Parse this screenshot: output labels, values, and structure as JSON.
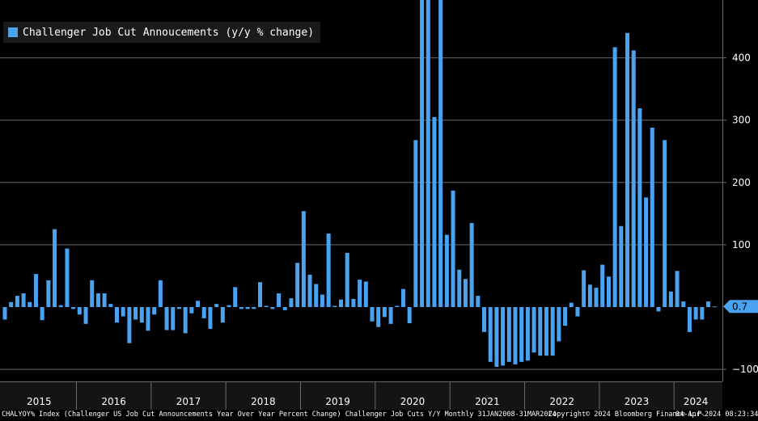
{
  "chart_data": {
    "type": "bar",
    "title": "",
    "xlabel": "",
    "ylabel": "",
    "ylim": [
      -108,
      495
    ],
    "yticks": [
      -100,
      100,
      200,
      300,
      400
    ],
    "last_value_label": "0.7",
    "bar_color": "#4aa3f0",
    "grid": true,
    "legend": {
      "position": "top-left",
      "entries": [
        "Challenger Job Cut Annoucements (y/y % change)"
      ]
    },
    "x_tick_labels": [
      "2015",
      "2016",
      "2017",
      "2018",
      "2019",
      "2020",
      "2021",
      "2022",
      "2023",
      "2024"
    ],
    "start": "2015-01",
    "series": [
      {
        "name": "Challenger Job Cut Annoucements (y/y % change)",
        "values": [
          -20,
          8,
          18,
          22,
          8,
          53,
          -21,
          43,
          125,
          3,
          94,
          -3,
          -12,
          -27,
          43,
          22,
          22,
          5,
          -25,
          -15,
          -58,
          -20,
          -25,
          -38,
          -12,
          43,
          -37,
          -37,
          -3,
          -42,
          -10,
          10,
          -18,
          -35,
          5,
          -25,
          3,
          32,
          -3,
          -3,
          -3,
          40,
          2,
          -3,
          22,
          -5,
          14,
          71,
          154,
          52,
          37,
          20,
          118,
          2,
          12,
          87,
          13,
          44,
          41,
          -23,
          -32,
          -16,
          -27,
          2,
          29,
          -26,
          268,
          495,
          495,
          305,
          495,
          116,
          187,
          60,
          45,
          135,
          18,
          -40,
          -88,
          -96,
          -94,
          -88,
          -92,
          -88,
          -86,
          -73,
          -78,
          -78,
          -78,
          -55,
          -30,
          7,
          -15,
          59,
          36,
          31,
          68,
          49,
          417,
          130,
          440,
          412,
          319,
          176,
          288,
          -7,
          268,
          25,
          58,
          9,
          -40,
          -20,
          -20,
          9,
          1
        ]
      }
    ]
  },
  "legend_label": "Challenger Job Cut Annoucements (y/y % change)",
  "footer": {
    "ticker": "CHALYOY% Index (Challenger US Job Cut Announcements Year Over Year Percent Change) Challenger Job Cuts Y/Y  Monthly 31JAN2008-31MAR2024",
    "copyright": "Copyright© 2024 Bloomberg Finance L.P.",
    "timestamp": "04-Apr-2024 08:23:34"
  },
  "colors": {
    "background": "#000000",
    "bar": "#4aa3f0",
    "grid": "#6a6a6a",
    "axis_text": "#ffffff"
  }
}
